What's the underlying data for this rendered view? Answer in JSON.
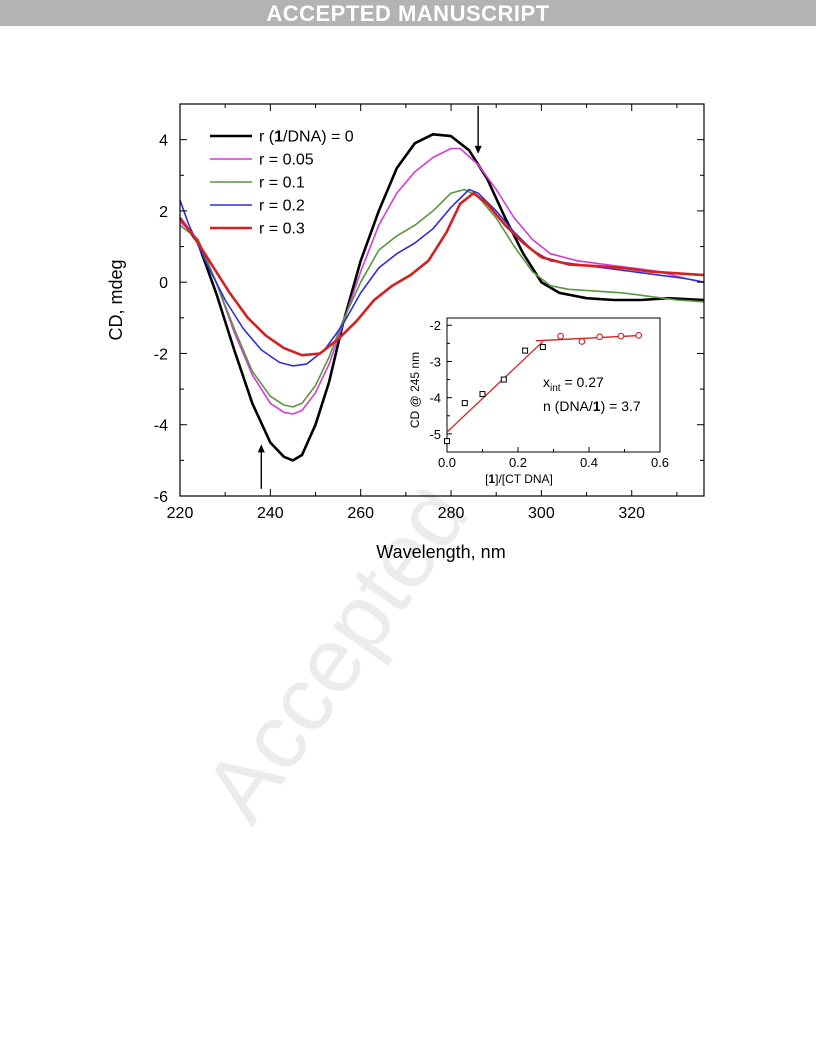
{
  "header": {
    "banner": "ACCEPTED MANUSCRIPT"
  },
  "watermark": "Accepted",
  "chart_data": [
    {
      "type": "line",
      "xlabel": "Wavelength, nm",
      "ylabel": "CD, mdeg",
      "xlim": [
        220,
        336
      ],
      "ylim": [
        -6,
        5
      ],
      "xticks": [
        220,
        240,
        260,
        280,
        300,
        320
      ],
      "yticks": [
        -6,
        -4,
        -2,
        0,
        2,
        4
      ],
      "legend": {
        "placement": "top-left",
        "entries": [
          {
            "pre": "r (",
            "bold": "1",
            "post": "/DNA) = 0"
          },
          {
            "pre": "r = 0.05",
            "bold": "",
            "post": ""
          },
          {
            "pre": "r = 0.1",
            "bold": "",
            "post": ""
          },
          {
            "pre": "r = 0.2",
            "bold": "",
            "post": ""
          },
          {
            "pre": "r = 0.3",
            "bold": "",
            "post": ""
          }
        ]
      },
      "series": [
        {
          "color": "#000000",
          "width": 2.6,
          "points": [
            [
              220,
              1.8
            ],
            [
              224,
              1.1
            ],
            [
              228,
              -0.3
            ],
            [
              232,
              -1.9
            ],
            [
              236,
              -3.4
            ],
            [
              240,
              -4.5
            ],
            [
              243,
              -4.9
            ],
            [
              245,
              -5.0
            ],
            [
              247,
              -4.85
            ],
            [
              250,
              -4.0
            ],
            [
              253,
              -2.8
            ],
            [
              256,
              -1.2
            ],
            [
              260,
              0.6
            ],
            [
              264,
              2.0
            ],
            [
              268,
              3.2
            ],
            [
              272,
              3.9
            ],
            [
              276,
              4.15
            ],
            [
              280,
              4.1
            ],
            [
              284,
              3.7
            ],
            [
              288,
              2.9
            ],
            [
              292,
              1.8
            ],
            [
              296,
              0.8
            ],
            [
              300,
              0.0
            ],
            [
              304,
              -0.3
            ],
            [
              310,
              -0.45
            ],
            [
              316,
              -0.5
            ],
            [
              322,
              -0.5
            ],
            [
              328,
              -0.45
            ],
            [
              336,
              -0.5
            ]
          ]
        },
        {
          "color": "#d43cd4",
          "width": 1.6,
          "points": [
            [
              220,
              1.7
            ],
            [
              224,
              1.2
            ],
            [
              228,
              0.0
            ],
            [
              232,
              -1.4
            ],
            [
              236,
              -2.6
            ],
            [
              240,
              -3.4
            ],
            [
              243,
              -3.65
            ],
            [
              245,
              -3.7
            ],
            [
              247,
              -3.6
            ],
            [
              250,
              -3.1
            ],
            [
              253,
              -2.3
            ],
            [
              256,
              -1.2
            ],
            [
              260,
              0.3
            ],
            [
              264,
              1.6
            ],
            [
              268,
              2.5
            ],
            [
              272,
              3.1
            ],
            [
              276,
              3.5
            ],
            [
              280,
              3.75
            ],
            [
              282,
              3.75
            ],
            [
              286,
              3.3
            ],
            [
              290,
              2.6
            ],
            [
              294,
              1.8
            ],
            [
              298,
              1.2
            ],
            [
              302,
              0.8
            ],
            [
              308,
              0.6
            ],
            [
              314,
              0.5
            ],
            [
              320,
              0.4
            ],
            [
              326,
              0.3
            ],
            [
              332,
              0.1
            ],
            [
              336,
              0.0
            ]
          ]
        },
        {
          "color": "#5a9640",
          "width": 1.6,
          "points": [
            [
              220,
              1.6
            ],
            [
              224,
              1.2
            ],
            [
              228,
              0.0
            ],
            [
              232,
              -1.3
            ],
            [
              236,
              -2.5
            ],
            [
              240,
              -3.2
            ],
            [
              243,
              -3.45
            ],
            [
              245,
              -3.5
            ],
            [
              247,
              -3.4
            ],
            [
              250,
              -2.9
            ],
            [
              253,
              -2.1
            ],
            [
              256,
              -1.1
            ],
            [
              260,
              0.0
            ],
            [
              264,
              0.9
            ],
            [
              268,
              1.3
            ],
            [
              272,
              1.6
            ],
            [
              276,
              2.0
            ],
            [
              280,
              2.5
            ],
            [
              283,
              2.6
            ],
            [
              286,
              2.4
            ],
            [
              290,
              1.8
            ],
            [
              294,
              1.0
            ],
            [
              298,
              0.3
            ],
            [
              302,
              -0.1
            ],
            [
              306,
              -0.2
            ],
            [
              312,
              -0.25
            ],
            [
              318,
              -0.3
            ],
            [
              324,
              -0.4
            ],
            [
              330,
              -0.5
            ],
            [
              336,
              -0.55
            ]
          ]
        },
        {
          "color": "#3030d8",
          "width": 1.6,
          "points": [
            [
              220,
              2.3
            ],
            [
              222,
              1.6
            ],
            [
              226,
              0.5
            ],
            [
              230,
              -0.5
            ],
            [
              234,
              -1.3
            ],
            [
              238,
              -1.9
            ],
            [
              242,
              -2.25
            ],
            [
              245,
              -2.35
            ],
            [
              248,
              -2.3
            ],
            [
              252,
              -1.9
            ],
            [
              256,
              -1.2
            ],
            [
              260,
              -0.3
            ],
            [
              264,
              0.4
            ],
            [
              268,
              0.8
            ],
            [
              272,
              1.1
            ],
            [
              276,
              1.5
            ],
            [
              280,
              2.1
            ],
            [
              284,
              2.6
            ],
            [
              286,
              2.5
            ],
            [
              290,
              2.0
            ],
            [
              294,
              1.4
            ],
            [
              298,
              0.9
            ],
            [
              302,
              0.6
            ],
            [
              308,
              0.5
            ],
            [
              314,
              0.4
            ],
            [
              320,
              0.3
            ],
            [
              326,
              0.2
            ],
            [
              332,
              0.1
            ],
            [
              336,
              0.0
            ]
          ]
        },
        {
          "color": "#d42020",
          "width": 2.6,
          "points": [
            [
              220,
              1.8
            ],
            [
              223,
              1.3
            ],
            [
              227,
              0.5
            ],
            [
              231,
              -0.3
            ],
            [
              235,
              -1.0
            ],
            [
              239,
              -1.5
            ],
            [
              243,
              -1.85
            ],
            [
              247,
              -2.05
            ],
            [
              251,
              -2.0
            ],
            [
              255,
              -1.6
            ],
            [
              259,
              -1.1
            ],
            [
              263,
              -0.5
            ],
            [
              267,
              -0.1
            ],
            [
              271,
              0.2
            ],
            [
              275,
              0.6
            ],
            [
              279,
              1.4
            ],
            [
              282,
              2.2
            ],
            [
              285,
              2.5
            ],
            [
              288,
              2.2
            ],
            [
              292,
              1.6
            ],
            [
              296,
              1.1
            ],
            [
              300,
              0.7
            ],
            [
              306,
              0.5
            ],
            [
              312,
              0.45
            ],
            [
              318,
              0.4
            ],
            [
              324,
              0.3
            ],
            [
              330,
              0.25
            ],
            [
              336,
              0.2
            ]
          ]
        }
      ],
      "arrows": [
        {
          "x": 286,
          "y_from": 4.95,
          "y_to": 3.6
        },
        {
          "x": 238,
          "y_from": -5.8,
          "y_to": -4.55
        }
      ]
    },
    {
      "type": "scatter",
      "xlabel_pre": "[",
      "xlabel_bold": "1",
      "xlabel_post": "]/[CT DNA]",
      "ylabel": "CD @ 245 nm",
      "xlim": [
        0,
        0.6
      ],
      "ylim": [
        -5.5,
        -1.8
      ],
      "xticks": [
        "0.0",
        "0.2",
        "0.4",
        "0.6"
      ],
      "ytick_labels": [
        "-2",
        "-3",
        "-4",
        "-5"
      ],
      "yticks": [
        -2,
        -3,
        -4,
        -5
      ],
      "series": [
        {
          "marker": "square",
          "color": "#000000",
          "points": [
            [
              0.0,
              -5.2
            ],
            [
              0.05,
              -4.15
            ],
            [
              0.1,
              -3.9
            ],
            [
              0.16,
              -3.5
            ],
            [
              0.22,
              -2.7
            ],
            [
              0.27,
              -2.6
            ]
          ]
        },
        {
          "marker": "circle",
          "color": "#d42020",
          "points": [
            [
              0.32,
              -2.3
            ],
            [
              0.38,
              -2.45
            ],
            [
              0.43,
              -2.32
            ],
            [
              0.49,
              -2.3
            ],
            [
              0.54,
              -2.28
            ]
          ]
        }
      ],
      "fit_lines": [
        {
          "color": "#d42020",
          "from": [
            0.0,
            -4.95
          ],
          "to": [
            0.27,
            -2.45
          ]
        },
        {
          "color": "#d42020",
          "from": [
            0.25,
            -2.43
          ],
          "to": [
            0.55,
            -2.28
          ]
        }
      ],
      "annotations": {
        "xint_base": "x",
        "xint_sub": "int",
        "xint_value": " = 0.27",
        "n_pre": "n (DNA/",
        "n_bold": "1",
        "n_post": ") = 3.7"
      }
    }
  ]
}
